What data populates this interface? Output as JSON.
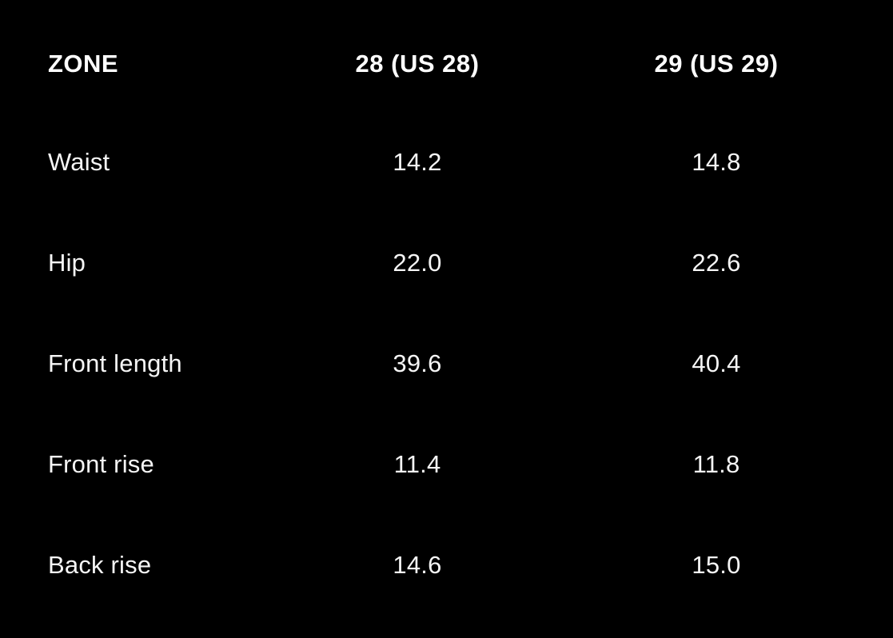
{
  "size_chart": {
    "columns": [
      {
        "label": "ZONE"
      },
      {
        "label": "28 (US 28)"
      },
      {
        "label": "29 (US 29)"
      }
    ],
    "rows": [
      {
        "label": "Waist",
        "values": [
          "14.2",
          "14.8"
        ]
      },
      {
        "label": "Hip",
        "values": [
          "22.0",
          "22.6"
        ]
      },
      {
        "label": "Front length",
        "values": [
          "39.6",
          "40.4"
        ]
      },
      {
        "label": "Front rise",
        "values": [
          "11.4",
          "11.8"
        ]
      },
      {
        "label": "Back rise",
        "values": [
          "14.6",
          "15.0"
        ]
      }
    ],
    "colors": {
      "background": "#000000",
      "header_text": "#ffffff",
      "body_text": "#f5f5f5"
    }
  }
}
